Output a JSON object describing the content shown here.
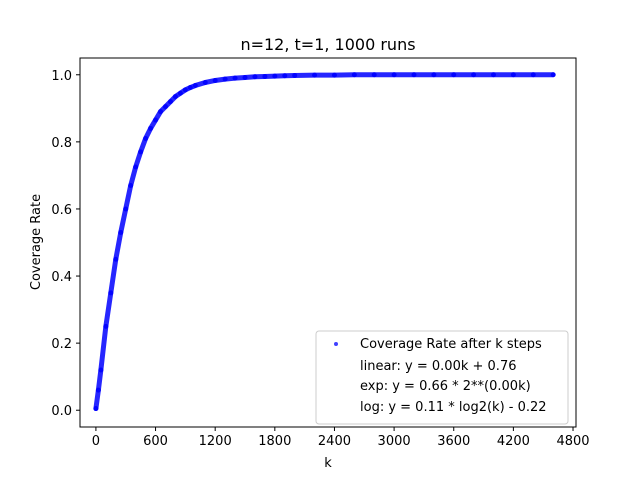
{
  "chart_data": {
    "type": "scatter",
    "title": "n=12, t=1, 1000 runs",
    "xlabel": "k",
    "ylabel": "Coverage Rate",
    "xlim": [
      -160,
      4830
    ],
    "ylim": [
      -0.05,
      1.05
    ],
    "xticks": [
      0,
      600,
      1200,
      1800,
      2400,
      3000,
      3600,
      4200,
      4800
    ],
    "yticks": [
      0.0,
      0.2,
      0.4,
      0.6,
      0.8,
      1.0
    ],
    "ytick_labels": [
      "0.0",
      "0.2",
      "0.4",
      "0.6",
      "0.8",
      "1.0"
    ],
    "grid": false,
    "legend_position": "lower-right",
    "series": [
      {
        "name": "Coverage Rate after k steps",
        "color": "#0000ff",
        "marker": "circle",
        "x": [
          0,
          25,
          50,
          100,
          150,
          200,
          250,
          300,
          350,
          400,
          450,
          500,
          550,
          600,
          650,
          700,
          750,
          800,
          850,
          900,
          950,
          1000,
          1100,
          1200,
          1300,
          1400,
          1500,
          1600,
          1700,
          1800,
          1900,
          2000,
          2200,
          2400,
          2600,
          2800,
          3000,
          3200,
          3400,
          3600,
          3800,
          4000,
          4200,
          4400,
          4600
        ],
        "y": [
          0.005,
          0.06,
          0.12,
          0.25,
          0.35,
          0.45,
          0.53,
          0.6,
          0.67,
          0.725,
          0.77,
          0.81,
          0.84,
          0.865,
          0.89,
          0.905,
          0.92,
          0.935,
          0.945,
          0.955,
          0.962,
          0.968,
          0.977,
          0.983,
          0.987,
          0.99,
          0.992,
          0.994,
          0.995,
          0.996,
          0.997,
          0.998,
          0.999,
          0.999,
          1.0,
          1.0,
          1.0,
          1.0,
          1.0,
          1.0,
          1.0,
          1.0,
          1.0,
          1.0,
          1.0
        ]
      }
    ],
    "legend_entries": [
      "linear:  y = 0.00k + 0.76",
      "exp:  y = 0.66 * 2**(0.00k)",
      "log:  y = 0.11 * log2(k) - 0.22"
    ]
  }
}
